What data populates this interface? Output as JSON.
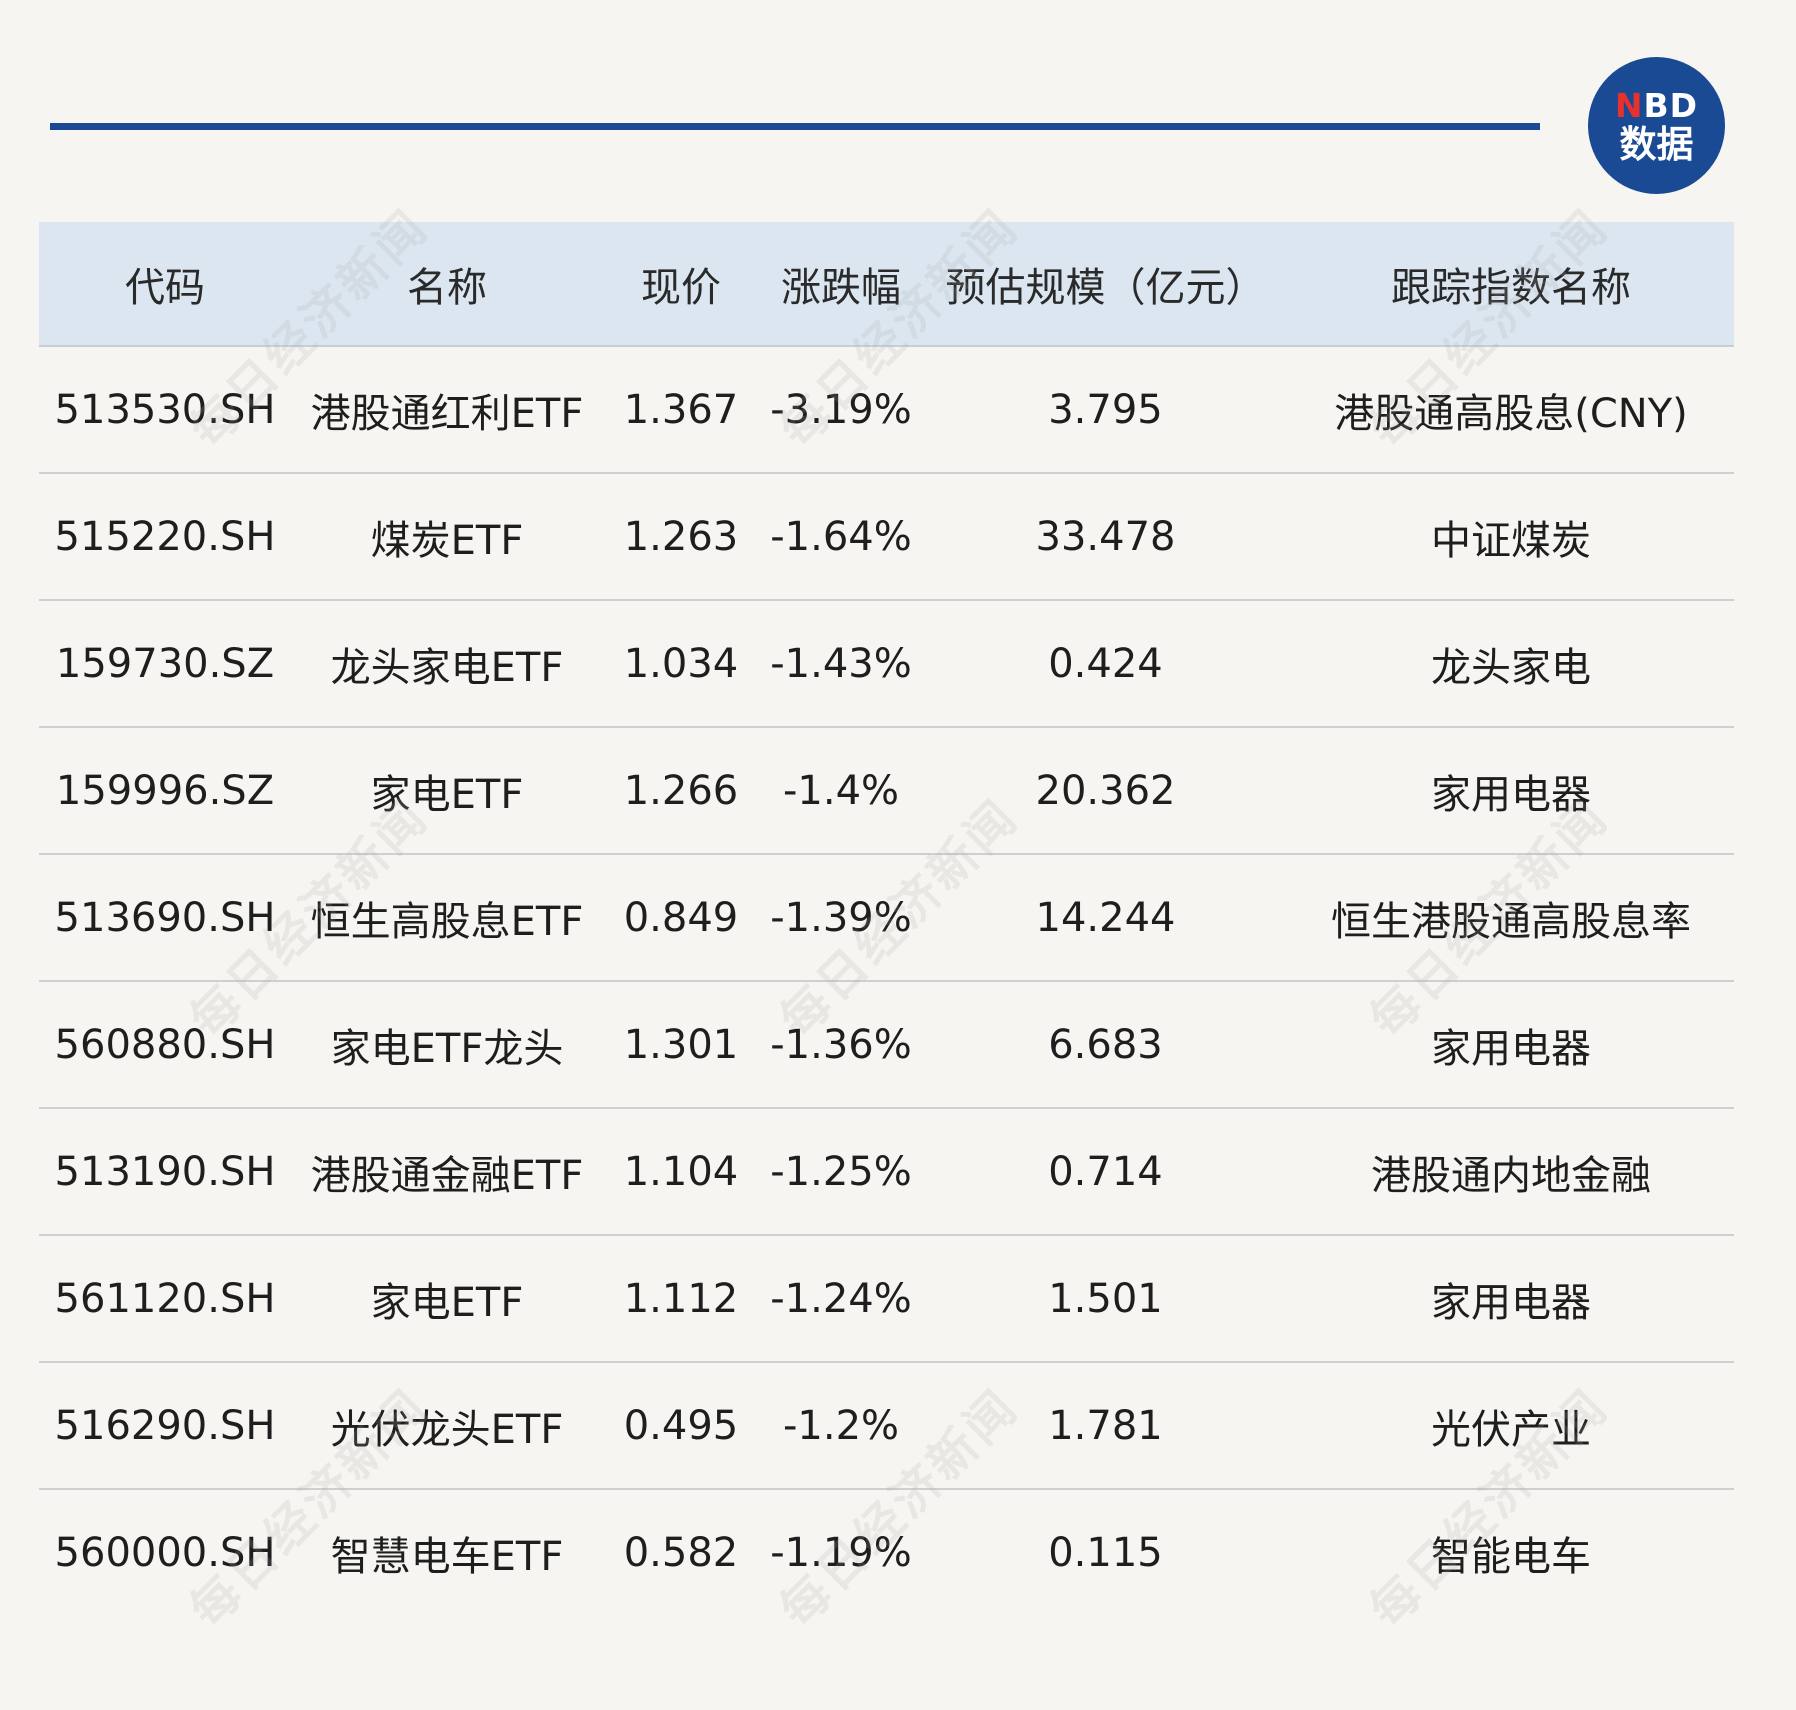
{
  "logo": {
    "line1_n": "N",
    "line1_rest": "BD",
    "line2": "数据"
  },
  "watermark": "每日经济新闻",
  "table": {
    "headers": [
      "代码",
      "名称",
      "现价",
      "涨跌幅",
      "预估规模（亿元）",
      "跟踪指数名称"
    ],
    "rows": [
      [
        "513530.SH",
        "港股通红利ETF",
        "1.367",
        "-3.19%",
        "3.795",
        "港股通高股息(CNY)"
      ],
      [
        "515220.SH",
        "煤炭ETF",
        "1.263",
        "-1.64%",
        "33.478",
        "中证煤炭"
      ],
      [
        "159730.SZ",
        "龙头家电ETF",
        "1.034",
        "-1.43%",
        "0.424",
        "龙头家电"
      ],
      [
        "159996.SZ",
        "家电ETF",
        "1.266",
        "-1.4%",
        "20.362",
        "家用电器"
      ],
      [
        "513690.SH",
        "恒生高股息ETF",
        "0.849",
        "-1.39%",
        "14.244",
        "恒生港股通高股息率"
      ],
      [
        "560880.SH",
        "家电ETF龙头",
        "1.301",
        "-1.36%",
        "6.683",
        "家用电器"
      ],
      [
        "513190.SH",
        "港股通金融ETF",
        "1.104",
        "-1.25%",
        "0.714",
        "港股通内地金融"
      ],
      [
        "561120.SH",
        "家电ETF",
        "1.112",
        "-1.24%",
        "1.501",
        "家用电器"
      ],
      [
        "516290.SH",
        "光伏龙头ETF",
        "0.495",
        "-1.2%",
        "1.781",
        "光伏产业"
      ],
      [
        "560000.SH",
        "智慧电车ETF",
        "0.582",
        "-1.19%",
        "0.115",
        "智能电车"
      ]
    ]
  }
}
